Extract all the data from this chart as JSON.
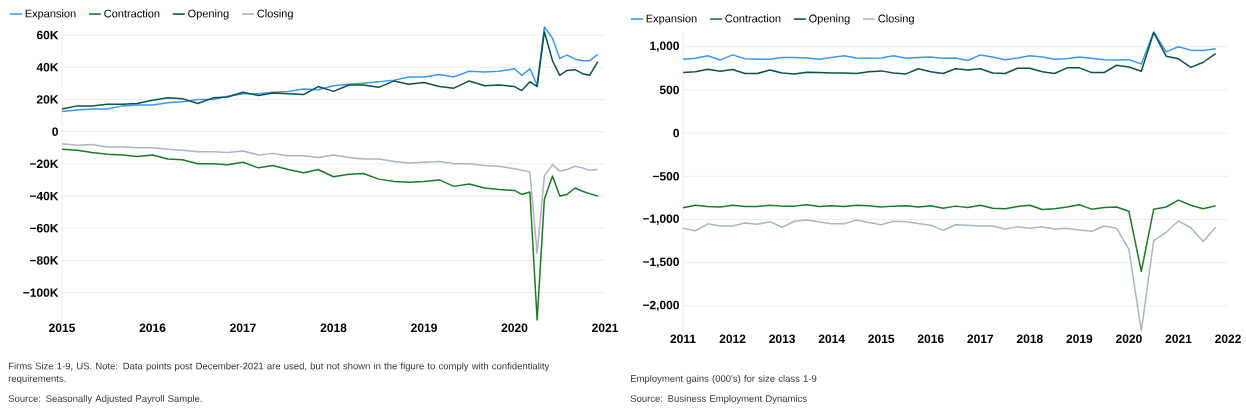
{
  "chart_data": [
    {
      "type": "line",
      "grid": "y",
      "legend": "top left",
      "x": [
        "2015-01",
        "2015-03",
        "2015-05",
        "2015-07",
        "2015-09",
        "2015-11",
        "2016-01",
        "2016-03",
        "2016-05",
        "2016-07",
        "2016-09",
        "2016-11",
        "2017-01",
        "2017-03",
        "2017-05",
        "2017-07",
        "2017-09",
        "2017-11",
        "2018-01",
        "2018-03",
        "2018-05",
        "2018-07",
        "2018-09",
        "2018-11",
        "2019-01",
        "2019-03",
        "2019-05",
        "2019-07",
        "2019-09",
        "2019-11",
        "2020-01",
        "2020-02",
        "2020-03",
        "2020-04",
        "2020-05",
        "2020-06",
        "2020-07",
        "2020-08",
        "2020-09",
        "2020-10",
        "2020-11",
        "2020-12"
      ],
      "xlim": [
        "2015",
        "2021"
      ],
      "xticks": [
        {
          "value": "2015",
          "label": "2015"
        },
        {
          "value": "2016",
          "label": "2016"
        },
        {
          "value": "2017",
          "label": "2017"
        },
        {
          "value": "2018",
          "label": "2018"
        },
        {
          "value": "2019",
          "label": "2019"
        },
        {
          "value": "2020",
          "label": "2020"
        },
        {
          "value": "2021",
          "label": "2021"
        }
      ],
      "ylim": [
        -117000,
        65000
      ],
      "yticks": [
        {
          "value": 60000,
          "label": "60K"
        },
        {
          "value": 40000,
          "label": "40K"
        },
        {
          "value": 20000,
          "label": "20K"
        },
        0,
        {
          "value": -20000,
          "label": "−20K"
        },
        {
          "value": -40000,
          "label": "−40K"
        },
        {
          "value": -60000,
          "label": "−60K"
        },
        {
          "value": -80000,
          "label": "−80K"
        },
        {
          "value": -100000,
          "label": "−100K"
        }
      ],
      "series": [
        {
          "name": "Expansion",
          "color": "#3e97ee",
          "values": [
            12500,
            13500,
            14000,
            14000,
            16000,
            16500,
            16500,
            18000,
            18500,
            20000,
            20000,
            22000,
            23500,
            23500,
            24500,
            25000,
            26500,
            26000,
            28500,
            29500,
            30000,
            31000,
            32000,
            34000,
            34000,
            35500,
            34000,
            37500,
            37000,
            37500,
            39000,
            35000,
            39000,
            29000,
            65000,
            58000,
            45500,
            47500,
            45000,
            44000,
            44000,
            48000
          ]
        },
        {
          "name": "Contraction",
          "color": "#1a7a2a",
          "values": [
            -11000,
            -11500,
            -13000,
            -14000,
            -14500,
            -15500,
            -14500,
            -17000,
            -17500,
            -20000,
            -20000,
            -20500,
            -19000,
            -22500,
            -21000,
            -23500,
            -25500,
            -23500,
            -28000,
            -26500,
            -26000,
            -29500,
            -31000,
            -31500,
            -31000,
            -30000,
            -34000,
            -32500,
            -35000,
            -36000,
            -36500,
            -39000,
            -37500,
            -117000,
            -42000,
            -27500,
            -40000,
            -39000,
            -35000,
            -37000,
            -38500,
            -40000
          ]
        },
        {
          "name": "Opening",
          "color": "#0b4f4f",
          "values": [
            14000,
            16000,
            16000,
            17000,
            17000,
            17500,
            19500,
            21000,
            20500,
            17500,
            21000,
            21500,
            24500,
            22500,
            24000,
            23500,
            23000,
            28000,
            25000,
            29000,
            29000,
            27500,
            31500,
            29500,
            30500,
            28000,
            27000,
            31500,
            28500,
            29000,
            28000,
            25500,
            31000,
            28000,
            62000,
            44000,
            35000,
            38000,
            38500,
            36000,
            35000,
            43500
          ]
        },
        {
          "name": "Closing",
          "color": "#aab6bf",
          "values": [
            -7500,
            -8500,
            -8000,
            -9500,
            -9500,
            -10000,
            -10000,
            -11000,
            -11500,
            -12500,
            -12500,
            -13000,
            -12000,
            -14500,
            -13500,
            -15000,
            -15000,
            -16000,
            -14500,
            -16000,
            -17000,
            -17000,
            -18500,
            -19500,
            -19000,
            -18500,
            -20000,
            -20000,
            -21000,
            -21500,
            -23000,
            -24000,
            -25000,
            -75500,
            -27500,
            -20500,
            -24500,
            -23500,
            -21500,
            -22500,
            -24000,
            -23500
          ]
        }
      ],
      "annotations": [
        "Firms Size 1-9, US. Note: Data points post December-2021 are used, but not shown in the figure to comply with confidentiality requirements.",
        "Source: Seasonally Adjusted Payroll Sample."
      ]
    },
    {
      "type": "line",
      "grid": "y",
      "legend": "top left",
      "x": [
        "2011-01",
        "2011-04",
        "2011-07",
        "2011-10",
        "2012-01",
        "2012-04",
        "2012-07",
        "2012-10",
        "2013-01",
        "2013-04",
        "2013-07",
        "2013-10",
        "2014-01",
        "2014-04",
        "2014-07",
        "2014-10",
        "2015-01",
        "2015-04",
        "2015-07",
        "2015-10",
        "2016-01",
        "2016-04",
        "2016-07",
        "2016-10",
        "2017-01",
        "2017-04",
        "2017-07",
        "2017-10",
        "2018-01",
        "2018-04",
        "2018-07",
        "2018-10",
        "2019-01",
        "2019-04",
        "2019-07",
        "2019-10",
        "2020-01",
        "2020-04",
        "2020-07",
        "2020-10",
        "2021-01",
        "2021-04",
        "2021-07",
        "2021-10"
      ],
      "xlim": [
        "2011",
        "2022"
      ],
      "xticks": [
        {
          "value": "2011",
          "label": "2011"
        },
        {
          "value": "2012",
          "label": "2012"
        },
        {
          "value": "2013",
          "label": "2013"
        },
        {
          "value": "2014",
          "label": "2014"
        },
        {
          "value": "2015",
          "label": "2015"
        },
        {
          "value": "2016",
          "label": "2016"
        },
        {
          "value": "2017",
          "label": "2017"
        },
        {
          "value": "2018",
          "label": "2018"
        },
        {
          "value": "2019",
          "label": "2019"
        },
        {
          "value": "2020",
          "label": "2020"
        },
        {
          "value": "2021",
          "label": "2021"
        },
        {
          "value": "2022",
          "label": "2022"
        }
      ],
      "ylim": [
        -2290,
        1170
      ],
      "yticks": [
        {
          "value": 1000,
          "label": "1,000"
        },
        500,
        0,
        {
          "value": -500,
          "label": "−500"
        },
        {
          "value": -1000,
          "label": "−1,000"
        },
        {
          "value": -1500,
          "label": "−1,500"
        },
        {
          "value": -2000,
          "label": "−2,000"
        }
      ],
      "series": [
        {
          "name": "Expansion",
          "color": "#3e97ee",
          "values": [
            855,
            865,
            895,
            845,
            905,
            860,
            855,
            855,
            875,
            875,
            870,
            855,
            875,
            895,
            870,
            865,
            870,
            895,
            865,
            875,
            880,
            865,
            870,
            840,
            905,
            880,
            850,
            870,
            895,
            880,
            855,
            860,
            880,
            865,
            850,
            845,
            850,
            800,
            1170,
            940,
            1000,
            960,
            955,
            975
          ]
        },
        {
          "name": "Contraction",
          "color": "#1a7a2a",
          "values": [
            -865,
            -835,
            -850,
            -855,
            -835,
            -850,
            -850,
            -835,
            -845,
            -845,
            -830,
            -850,
            -840,
            -850,
            -835,
            -840,
            -855,
            -845,
            -840,
            -855,
            -840,
            -870,
            -845,
            -860,
            -835,
            -870,
            -875,
            -850,
            -835,
            -885,
            -875,
            -855,
            -830,
            -880,
            -860,
            -855,
            -905,
            -1600,
            -880,
            -855,
            -775,
            -835,
            -875,
            -840
          ]
        },
        {
          "name": "Opening",
          "color": "#0b4f4f",
          "values": [
            700,
            710,
            740,
            715,
            735,
            690,
            690,
            730,
            695,
            685,
            705,
            700,
            695,
            695,
            690,
            710,
            720,
            695,
            685,
            745,
            710,
            690,
            745,
            730,
            745,
            695,
            690,
            750,
            750,
            710,
            690,
            755,
            755,
            700,
            700,
            785,
            765,
            715,
            1165,
            890,
            860,
            760,
            820,
            920
          ]
        },
        {
          "name": "Closing",
          "color": "#aab6bf",
          "values": [
            -1100,
            -1130,
            -1050,
            -1075,
            -1075,
            -1040,
            -1055,
            -1025,
            -1090,
            -1020,
            -1005,
            -1030,
            -1050,
            -1050,
            -1005,
            -1035,
            -1060,
            -1020,
            -1025,
            -1045,
            -1065,
            -1125,
            -1060,
            -1065,
            -1075,
            -1075,
            -1110,
            -1085,
            -1100,
            -1085,
            -1110,
            -1100,
            -1120,
            -1135,
            -1075,
            -1100,
            -1345,
            -2290,
            -1245,
            -1150,
            -1015,
            -1095,
            -1255,
            -1090
          ]
        }
      ],
      "annotations": [
        "Employment gains (000's) for size class 1-9",
        "Source: Business Employment Dynamics"
      ]
    }
  ]
}
